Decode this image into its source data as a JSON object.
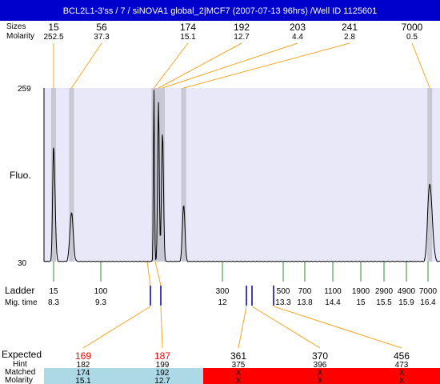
{
  "title": "BCL2L1-3'ss / 7 / siNOVA1 global_2|MCF7 (2007-07-13 96hrs) /Well ID 1125601",
  "header_labels": {
    "sizes": "Sizes",
    "molarity": "Molarity"
  },
  "peaks": [
    {
      "size": "15",
      "molarity": "252.5"
    },
    {
      "size": "56",
      "molarity": "37.3"
    },
    {
      "size": "174",
      "molarity": "15.1"
    },
    {
      "size": "192",
      "molarity": "12.7"
    },
    {
      "size": "203",
      "molarity": "4.4"
    },
    {
      "size": "241",
      "molarity": "2.8"
    },
    {
      "size": "7000",
      "molarity": "0.5"
    }
  ],
  "axis": {
    "ylabel": "Fluo.",
    "ymax": "259",
    "ymin": "30"
  },
  "ladder": {
    "label": "Ladder",
    "mig_label": "Mig. time",
    "items": [
      {
        "size": "15",
        "time": "8.3"
      },
      {
        "size": "100",
        "time": "9.3"
      },
      {
        "size": "300",
        "time": "12"
      },
      {
        "size": "500",
        "time": "13.3"
      },
      {
        "size": "700",
        "time": "13.8"
      },
      {
        "size": "1100",
        "time": "14.4"
      },
      {
        "size": "1900",
        "time": "15"
      },
      {
        "size": "2900",
        "time": "15.5"
      },
      {
        "size": "4900",
        "time": "15.9"
      },
      {
        "size": "7000",
        "time": "16.4"
      }
    ]
  },
  "expected": {
    "labels": {
      "expected": "Expected",
      "hint": "Hint",
      "matched": "Matched",
      "molarity": "Molarity"
    },
    "items": [
      {
        "expected": "169",
        "hint": "182",
        "matched": "174",
        "molarity": "15.1",
        "status": "matched"
      },
      {
        "expected": "187",
        "hint": "199",
        "matched": "192",
        "molarity": "12.7",
        "status": "matched"
      },
      {
        "expected": "361",
        "hint": "375",
        "matched": "X",
        "molarity": "X",
        "status": "unmatched"
      },
      {
        "expected": "370",
        "hint": "396",
        "matched": "X",
        "molarity": "X",
        "status": "unmatched"
      },
      {
        "expected": "456",
        "hint": "473",
        "matched": "X",
        "molarity": "X",
        "status": "unmatched"
      }
    ]
  },
  "colors": {
    "header_bg": "#0000cc",
    "plot_bg": "#e8e8f8",
    "peak_band": "#c8c8d4",
    "connector": "#f5a623",
    "ladder_tick": "#2e8b2e",
    "marker": "#000099",
    "expected_red": "#ff0000",
    "matched_bg": "#add8e6",
    "unmatched_bg": "#ff0000"
  },
  "chart_data": {
    "type": "line",
    "title": "BCL2L1-3'ss / 7 / siNOVA1 global_2|MCF7 (2007-07-13 96hrs) /Well ID 1125601",
    "ylabel": "Fluo.",
    "xlabel": "",
    "ylim": [
      30,
      259
    ],
    "xlim": [
      8.0,
      16.6
    ],
    "x_unit": "migration time",
    "baseline": 30,
    "peaks": [
      {
        "x": 8.3,
        "height": 182,
        "width": 0.03
      },
      {
        "x": 8.68,
        "height": 95,
        "width": 0.035
      },
      {
        "x": 10.48,
        "height": 259,
        "width": 0.012
      },
      {
        "x": 10.58,
        "height": 240,
        "width": 0.018
      },
      {
        "x": 10.67,
        "height": 200,
        "width": 0.022
      },
      {
        "x": 11.14,
        "height": 105,
        "width": 0.028
      },
      {
        "x": 16.43,
        "height": 132,
        "width": 0.04
      }
    ],
    "series": [
      {
        "x": [
          8.0,
          8.3,
          8.68,
          10.48,
          10.58,
          10.67,
          11.14,
          12.0,
          16.43,
          16.6
        ],
        "y": [
          30,
          182,
          95,
          259,
          240,
          200,
          105,
          33,
          132,
          30
        ]
      }
    ]
  }
}
